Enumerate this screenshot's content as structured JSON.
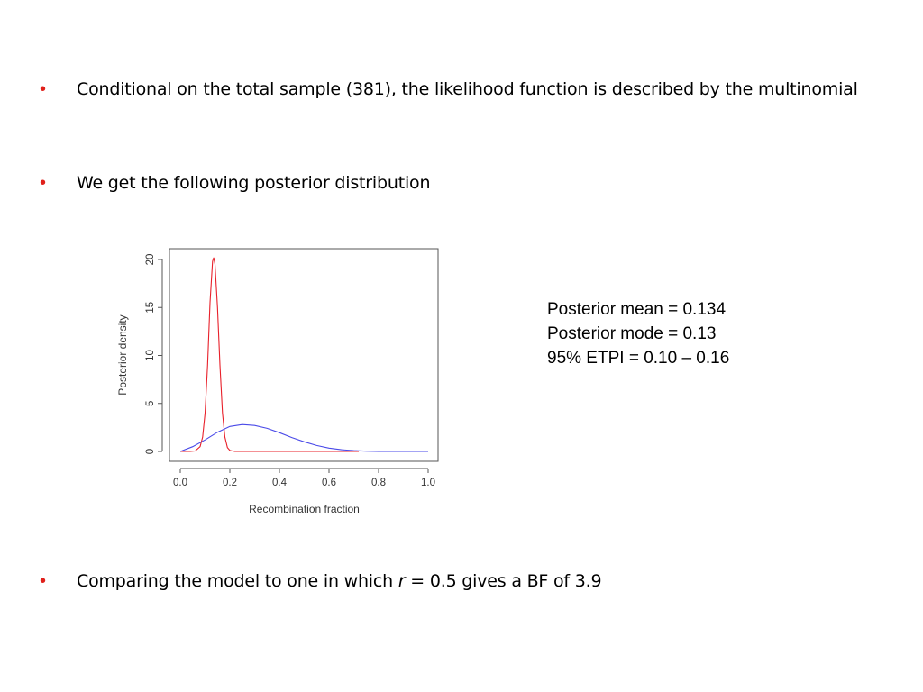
{
  "bullets": {
    "b1": "Conditional on the total sample (381), the likelihood function is described by the multinomial",
    "b2": "We get the following posterior distribution",
    "b3_pre": "Comparing the model to one in which ",
    "b3_var": "r",
    "b3_post": " = 0.5 gives a BF of 3.9",
    "marker": "•"
  },
  "stats": {
    "mean": "Posterior mean = 0.134",
    "mode": "Posterior mode = 0.13",
    "etpi": "95% ETPI = 0.10 – 0.16"
  },
  "colors": {
    "bullet": "#e0201b",
    "red_curve": "#e8202a",
    "blue_curve": "#4a4ae8"
  },
  "chart_data": {
    "type": "line",
    "xlabel": "Recombination fraction",
    "ylabel": "Posterior density",
    "xlim": [
      0.0,
      1.0
    ],
    "ylim": [
      0,
      20
    ],
    "x_ticks": [
      "0.0",
      "0.2",
      "0.4",
      "0.6",
      "0.8",
      "1.0"
    ],
    "y_ticks": [
      "0",
      "5",
      "10",
      "15",
      "20"
    ],
    "series": [
      {
        "color": "#e8202a",
        "x": [
          0.0,
          0.04,
          0.06,
          0.08,
          0.09,
          0.1,
          0.11,
          0.12,
          0.13,
          0.135,
          0.14,
          0.15,
          0.16,
          0.17,
          0.18,
          0.19,
          0.2,
          0.22,
          0.3,
          0.5,
          0.72
        ],
        "y": [
          0.0,
          0.0,
          0.05,
          0.5,
          1.5,
          4.0,
          9.0,
          15.5,
          19.8,
          20.2,
          19.5,
          15.0,
          9.0,
          4.0,
          1.5,
          0.4,
          0.1,
          0.0,
          0.0,
          0.0,
          0.0
        ]
      },
      {
        "color": "#4a4ae8",
        "x": [
          0.0,
          0.05,
          0.1,
          0.15,
          0.2,
          0.25,
          0.3,
          0.35,
          0.4,
          0.45,
          0.5,
          0.55,
          0.6,
          0.65,
          0.7,
          0.75,
          0.8,
          0.9,
          1.0
        ],
        "y": [
          0.0,
          0.5,
          1.2,
          2.0,
          2.6,
          2.8,
          2.7,
          2.4,
          1.95,
          1.45,
          1.0,
          0.62,
          0.35,
          0.18,
          0.08,
          0.03,
          0.01,
          0.0,
          0.0
        ]
      }
    ]
  }
}
